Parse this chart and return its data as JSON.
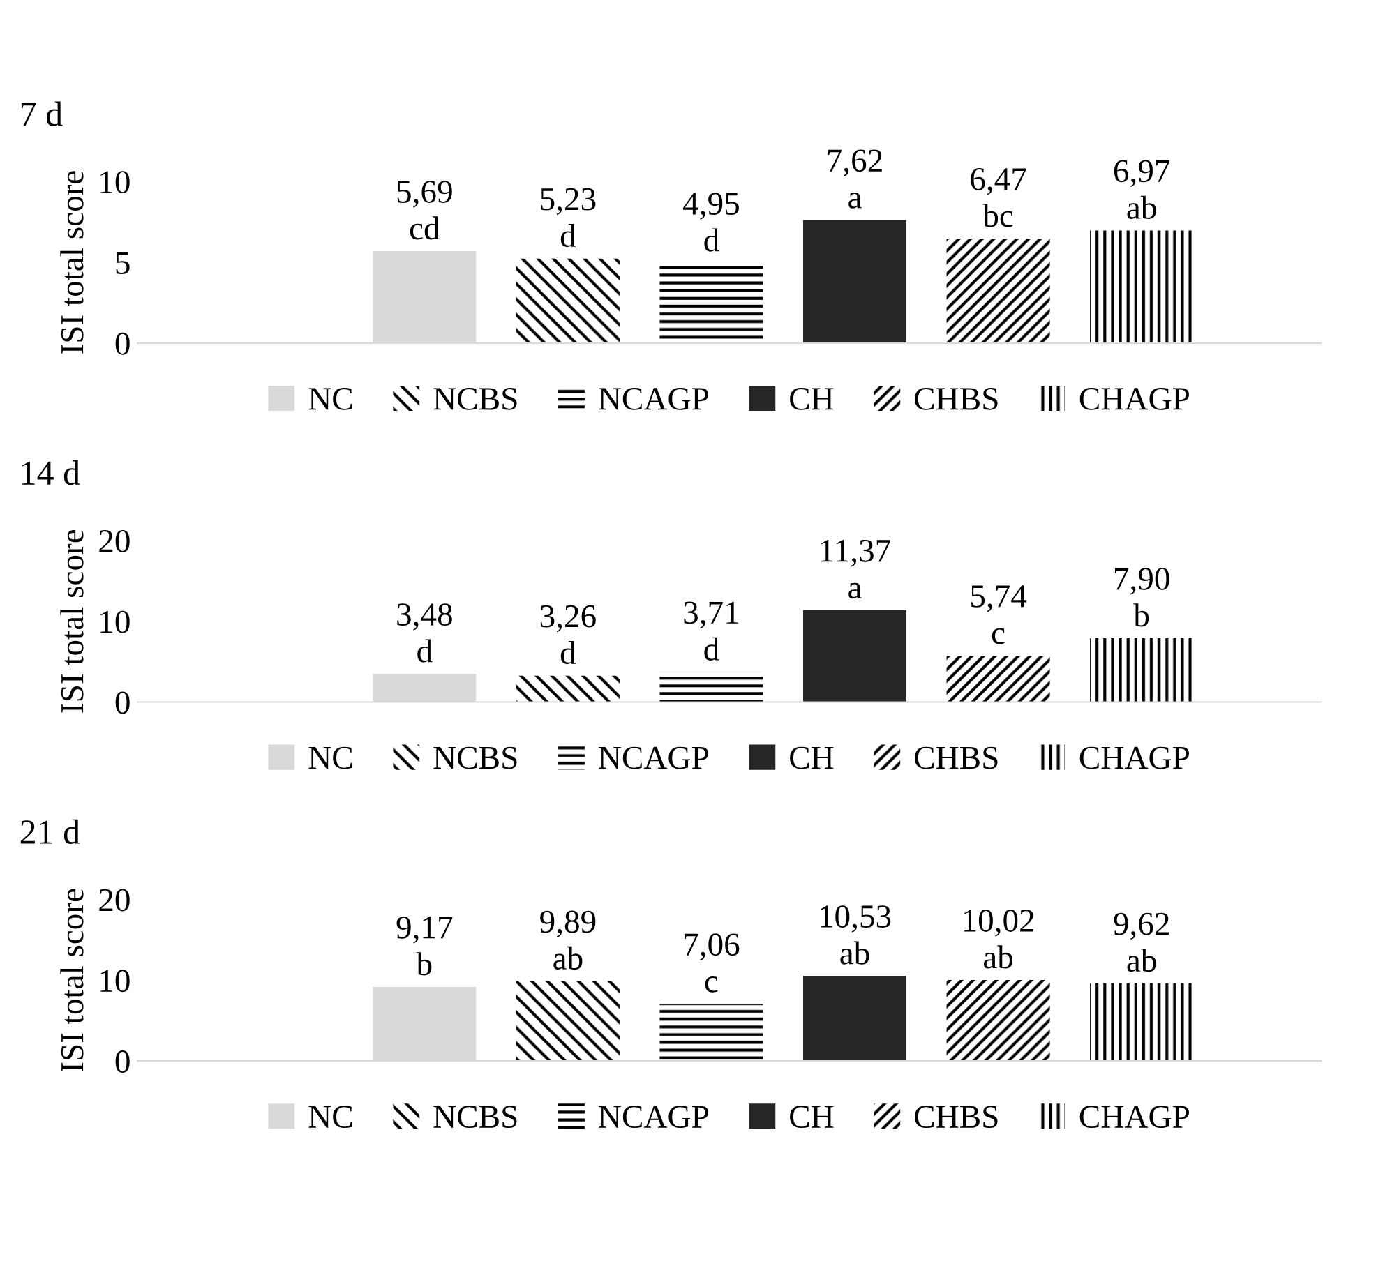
{
  "chart_data": [
    {
      "type": "bar",
      "title": "7 d",
      "ylabel": "ISI total score",
      "categories": [
        null
      ],
      "ylim": [
        0,
        10
      ],
      "yticks": [
        0,
        5,
        10
      ],
      "legend": "bottom",
      "series": [
        {
          "name": "NC",
          "color": "#d9d9d9",
          "values": [
            5.69
          ],
          "value_labels": [
            "5,69\ncd"
          ]
        },
        {
          "name": "NCBS",
          "color": "#ffffff",
          "values": [
            5.23
          ],
          "value_labels": [
            "5,23\nd"
          ]
        },
        {
          "name": "NCAGP",
          "color": "#ffffff",
          "values": [
            4.95
          ],
          "value_labels": [
            "4,95\nd"
          ]
        },
        {
          "name": "CH",
          "color": "#262626",
          "values": [
            7.62
          ],
          "value_labels": [
            "7,62\na"
          ]
        },
        {
          "name": "CHBS",
          "color": "#ffffff",
          "values": [
            6.47
          ],
          "value_labels": [
            "6,47\nbc"
          ]
        },
        {
          "name": "CHAGP",
          "color": "#ffffff",
          "values": [
            6.97
          ],
          "value_labels": [
            "6,97\nab"
          ]
        }
      ]
    },
    {
      "type": "bar",
      "title": "14 d",
      "ylabel": "ISI total score",
      "categories": [
        null
      ],
      "ylim": [
        0,
        20
      ],
      "yticks": [
        0,
        10,
        20
      ],
      "legend": "bottom",
      "series": [
        {
          "name": "NC",
          "color": "#d9d9d9",
          "values": [
            3.48
          ],
          "value_labels": [
            "3,48\nd"
          ]
        },
        {
          "name": "NCBS",
          "color": "#ffffff",
          "values": [
            3.26
          ],
          "value_labels": [
            "3,26\nd"
          ]
        },
        {
          "name": "NCAGP",
          "color": "#ffffff",
          "values": [
            3.71
          ],
          "value_labels": [
            "3,71\nd"
          ]
        },
        {
          "name": "CH",
          "color": "#262626",
          "values": [
            11.37
          ],
          "value_labels": [
            "11,37\na"
          ]
        },
        {
          "name": "CHBS",
          "color": "#ffffff",
          "values": [
            5.74
          ],
          "value_labels": [
            "5,74\nc"
          ]
        },
        {
          "name": "CHAGP",
          "color": "#ffffff",
          "values": [
            7.9
          ],
          "value_labels": [
            "7,90\nb"
          ]
        }
      ]
    },
    {
      "type": "bar",
      "title": "21 d",
      "ylabel": "ISI total score",
      "categories": [
        null
      ],
      "ylim": [
        0,
        20
      ],
      "yticks": [
        0,
        10,
        20
      ],
      "legend": "bottom",
      "series": [
        {
          "name": "NC",
          "color": "#d9d9d9",
          "values": [
            9.17
          ],
          "value_labels": [
            "9,17\nb"
          ]
        },
        {
          "name": "NCBS",
          "color": "#ffffff",
          "values": [
            9.89
          ],
          "value_labels": [
            "9,89\nab"
          ]
        },
        {
          "name": "NCAGP",
          "color": "#ffffff",
          "values": [
            7.06
          ],
          "value_labels": [
            "7,06\nc"
          ]
        },
        {
          "name": "CH",
          "color": "#262626",
          "values": [
            10.53
          ],
          "value_labels": [
            "10,53\nab"
          ]
        },
        {
          "name": "CHBS",
          "color": "#ffffff",
          "values": [
            10.02
          ],
          "value_labels": [
            "10,02\nab"
          ]
        },
        {
          "name": "CHAGP",
          "color": "#ffffff",
          "values": [
            9.62
          ],
          "value_labels": [
            "9,62\nab"
          ]
        }
      ]
    }
  ]
}
